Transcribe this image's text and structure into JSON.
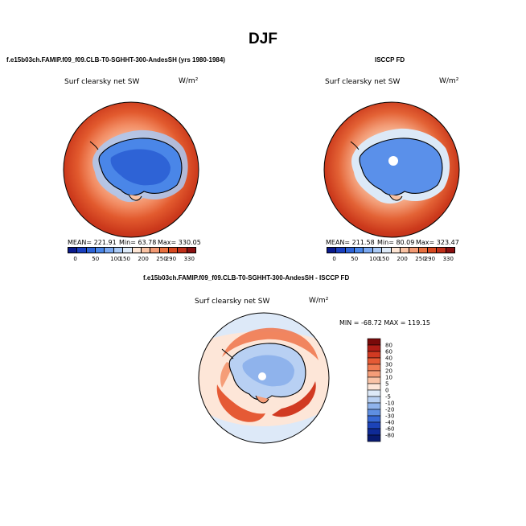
{
  "title": "DJF",
  "chart_data": [
    {
      "type": "heatmap",
      "title": "f.e15b03ch.FAMIP.f09_f09.CLB-T0-SGHHT-300-AndesSH (yrs 1980-1984)",
      "field_label": "Surf clearsky net SW",
      "units": "W/m²",
      "stats": {
        "mean": "MEAN= 221.91",
        "min": "Min= 63.78",
        "max": "Max= 330.05"
      },
      "colorbar": {
        "orientation": "horizontal",
        "ticks": [
          "0",
          "50",
          "100",
          "150",
          "200",
          "250",
          "290",
          "330"
        ],
        "colors": [
          "#0a1a8c",
          "#1a3fbf",
          "#2e63d6",
          "#4a86e8",
          "#7aa8f0",
          "#a9c9f5",
          "#dce9f7",
          "#fde5d4",
          "#f9c2a3",
          "#f29a74",
          "#e8703f",
          "#d74820",
          "#c0301a",
          "#8a1010"
        ]
      }
    },
    {
      "type": "heatmap",
      "title": "ISCCP FD",
      "field_label": "Surf clearsky net SW",
      "units": "W/m²",
      "stats": {
        "mean": "MEAN= 211.58",
        "min": "Min= 80.09",
        "max": "Max= 323.47"
      },
      "colorbar": {
        "orientation": "horizontal",
        "ticks": [
          "0",
          "50",
          "100",
          "150",
          "200",
          "250",
          "290",
          "330"
        ],
        "colors": [
          "#0a1a8c",
          "#1a3fbf",
          "#2e63d6",
          "#4a86e8",
          "#7aa8f0",
          "#a9c9f5",
          "#dce9f7",
          "#fde5d4",
          "#f9c2a3",
          "#f29a74",
          "#e8703f",
          "#d74820",
          "#c0301a",
          "#8a1010"
        ]
      }
    },
    {
      "type": "heatmap",
      "title": "f.e15b03ch.FAMIP.f09_f09.CLB-T0-SGHHT-300-AndesSH - ISCCP FD",
      "field_label": "Surf clearsky net SW",
      "units": "W/m²",
      "stats": {
        "minmax": "MIN = -68.72  MAX = 119.15"
      },
      "colorbar": {
        "orientation": "vertical",
        "ticks": [
          "80",
          "60",
          "40",
          "30",
          "20",
          "10",
          "5",
          "0",
          "-5",
          "-10",
          "-20",
          "-30",
          "-40",
          "-60",
          "-80"
        ],
        "colors": [
          "#7a0a0a",
          "#b01d16",
          "#d13a22",
          "#e55a35",
          "#f07a52",
          "#f59d78",
          "#f9c3a6",
          "#fde6d8",
          "#dde9f8",
          "#b8d0f3",
          "#8fb3ec",
          "#5f8fe2",
          "#3768d4",
          "#1c43b8",
          "#0f2a96",
          "#081a70"
        ]
      }
    }
  ]
}
